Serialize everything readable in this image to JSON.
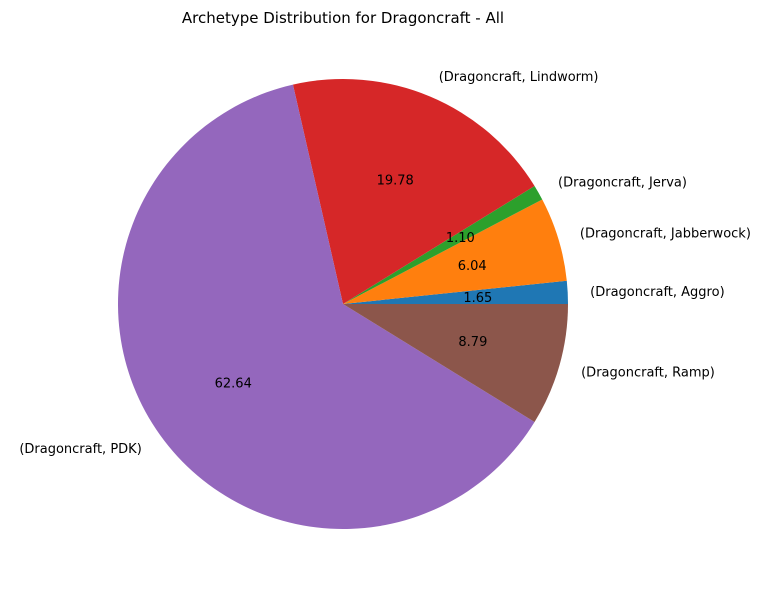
{
  "chart_data": {
    "type": "pie",
    "title": "Archetype Distribution for Dragoncraft - All",
    "slices": [
      {
        "label": "(Dragoncraft, Aggro)",
        "value": 1.65,
        "value_label": "1.65",
        "color": "#1f77b4"
      },
      {
        "label": "(Dragoncraft, Jabberwock)",
        "value": 6.04,
        "value_label": "6.04",
        "color": "#ff7f0e"
      },
      {
        "label": "(Dragoncraft, Jerva)",
        "value": 1.1,
        "value_label": "1.10",
        "color": "#2ca02c"
      },
      {
        "label": "(Dragoncraft, Lindworm)",
        "value": 19.78,
        "value_label": "19.78",
        "color": "#d62728"
      },
      {
        "label": "(Dragoncraft, PDK)",
        "value": 62.64,
        "value_label": "62.64",
        "color": "#9467bd"
      },
      {
        "label": "(Dragoncraft, Ramp)",
        "value": 8.79,
        "value_label": "8.79",
        "color": "#8c564b"
      }
    ],
    "start_angle": 0,
    "direction": "counterclockwise",
    "legend": "none"
  }
}
